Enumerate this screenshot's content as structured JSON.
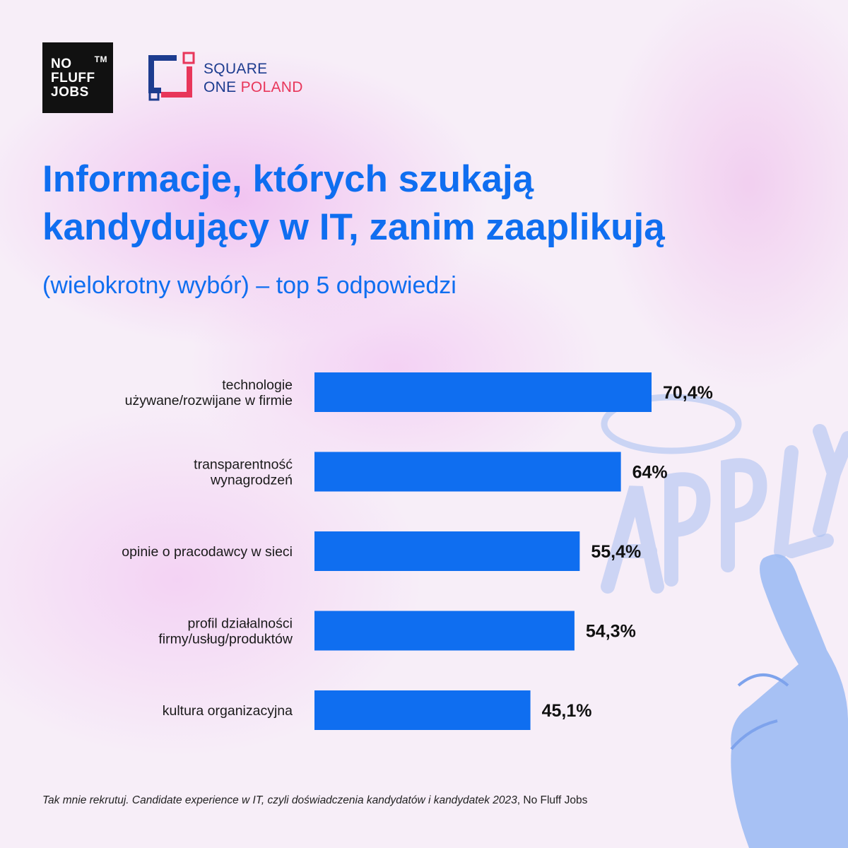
{
  "logos": {
    "nofluff": {
      "lines": [
        "NO",
        "FLUFF",
        "JOBS"
      ],
      "tm": "TM"
    },
    "squareone": {
      "line1": "SQUARE",
      "line2_a": "ONE",
      "line2_b": "POLAND",
      "navy": "#1d3c8f",
      "red": "#e8365a"
    }
  },
  "header": {
    "title_line1": "Informacje, których szukają",
    "title_line2": "kandydujący w IT, zanim zaaplikują",
    "subtitle": "(wielokrotny wybór) – top 5 odpowiedzi"
  },
  "chart_data": {
    "type": "bar",
    "orientation": "horizontal",
    "title": "Informacje, których szukają kandydujący w IT, zanim zaaplikują",
    "subtitle": "(wielokrotny wybór) – top 5 odpowiedzi",
    "unit": "%",
    "xlim": [
      0,
      100
    ],
    "categories": [
      [
        "technologie",
        "używane/rozwijane w firmie"
      ],
      [
        "transparentność",
        "wynagrodzeń"
      ],
      [
        "opinie o pracodawcy w sieci"
      ],
      [
        "profil działalności",
        "firmy/usług/produktów"
      ],
      [
        "kultura organizacyjna"
      ]
    ],
    "values": [
      70.4,
      64,
      55.4,
      54.3,
      45.1
    ],
    "value_labels": [
      "70,4%",
      "64%",
      "55,4%",
      "54,3%",
      "45,1%"
    ],
    "bar_color": "#0f6ef0",
    "grid": false
  },
  "source": {
    "italic": "Tak mnie rekrutuj. Candidate experience w IT, czyli doświadczenia kandydatów i kandydatek 2023",
    "plain": ", No Fluff Jobs"
  }
}
